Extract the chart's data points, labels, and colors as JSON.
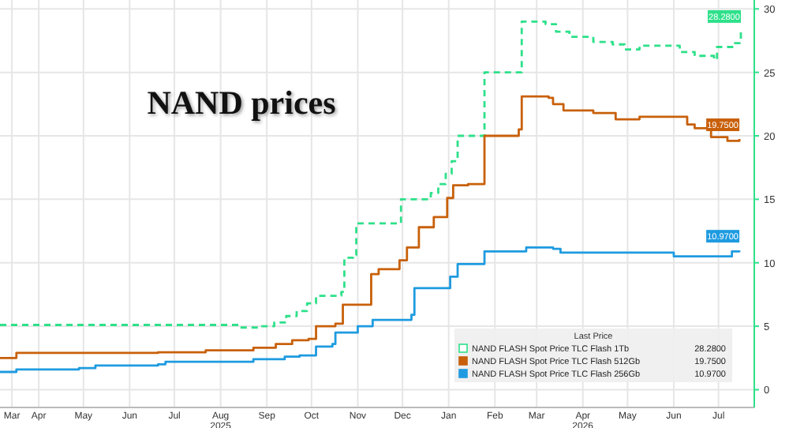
{
  "chart_data": {
    "type": "step",
    "title": "NAND prices",
    "legend_title": "Last Price",
    "legend": "bottom right",
    "grid": true,
    "line_style": "solid",
    "xlim": [
      "2025-03-20",
      "2026-08-08"
    ],
    "xticks": [
      {
        "value": "2025-03-28",
        "label": "Mar"
      },
      {
        "value": "2025-04-15",
        "label": "Apr"
      },
      {
        "value": "2025-05-15",
        "label": "May"
      },
      {
        "value": "2025-06-15",
        "label": "Jun"
      },
      {
        "value": "2025-07-15",
        "label": "Jul"
      },
      {
        "value": "2025-08-15",
        "label": "Aug\n2025"
      },
      {
        "value": "2025-09-15",
        "label": "Sep"
      },
      {
        "value": "2025-10-15",
        "label": "Oct"
      },
      {
        "value": "2025-11-15",
        "label": "Nov"
      },
      {
        "value": "2025-12-15",
        "label": "Dec"
      },
      {
        "value": "2026-01-15",
        "label": "Jan"
      },
      {
        "value": "2026-02-15",
        "label": "Feb"
      },
      {
        "value": "2026-03-15",
        "label": "Mar"
      },
      {
        "value": "2026-04-15",
        "label": "Apr\n2026"
      },
      {
        "value": "2026-05-15",
        "label": "May"
      },
      {
        "value": "2026-06-15",
        "label": "Jun"
      },
      {
        "value": "2026-07-15",
        "label": "Jul"
      }
    ],
    "ylim": [
      -1.4,
      30.7
    ],
    "yticks": [
      0,
      5,
      10,
      15,
      20,
      25,
      30
    ],
    "series": [
      {
        "name": "NAND FLASH Spot Price TLC Flash 1Tb",
        "color": "#2ee08a",
        "line_style": "dashed",
        "x": [
          "2025-03-20",
          "2025-08-25",
          "2025-08-28",
          "2025-09-10",
          "2025-09-20",
          "2025-09-28",
          "2025-10-05",
          "2025-10-12",
          "2025-10-18",
          "2025-11-04",
          "2025-11-06",
          "2025-11-12",
          "2025-11-14",
          "2025-12-14",
          "2026-01-03",
          "2026-01-08",
          "2026-01-13",
          "2026-01-17",
          "2026-01-21",
          "2026-02-08",
          "2026-03-05",
          "2026-03-21",
          "2026-03-28",
          "2026-04-06",
          "2026-04-22",
          "2026-05-05",
          "2026-05-13",
          "2026-05-23",
          "2026-06-08",
          "2026-06-19",
          "2026-06-29",
          "2026-07-12",
          "2026-07-14",
          "2026-07-26",
          "2026-07-30"
        ],
        "values": [
          5.1,
          5.1,
          4.9,
          5.0,
          5.3,
          5.8,
          6.2,
          6.8,
          7.4,
          7.7,
          10.4,
          10.6,
          13.1,
          15.0,
          15.5,
          16.2,
          17.0,
          18.0,
          20.0,
          25.0,
          29.0,
          28.8,
          28.2,
          27.8,
          27.4,
          27.2,
          26.8,
          27.1,
          27.1,
          26.6,
          26.3,
          26.0,
          27.0,
          27.3,
          28.28
        ],
        "value_labels": [
          null,
          null,
          null,
          null,
          null,
          null,
          null,
          null,
          null,
          null,
          null,
          null,
          null,
          null,
          null,
          null,
          null,
          null,
          null,
          null,
          null,
          null,
          null,
          null,
          null,
          null,
          null,
          null,
          null,
          null,
          null,
          null,
          null,
          null,
          "28.2800"
        ]
      },
      {
        "name": "NAND FLASH Spot Price TLC Flash 512Gb",
        "color": "#c8600a",
        "x": [
          "2025-03-20",
          "2025-03-31",
          "2025-07-04",
          "2025-08-05",
          "2025-09-06",
          "2025-09-21",
          "2025-10-02",
          "2025-10-13",
          "2025-10-18",
          "2025-10-31",
          "2025-11-05",
          "2025-11-24",
          "2025-11-29",
          "2025-12-13",
          "2025-12-18",
          "2025-12-26",
          "2026-01-05",
          "2026-01-14",
          "2026-01-18",
          "2026-01-28",
          "2026-02-08",
          "2026-03-03",
          "2026-03-05",
          "2026-03-23",
          "2026-03-26",
          "2026-04-02",
          "2026-04-22",
          "2026-05-07",
          "2026-05-23",
          "2026-06-13",
          "2026-06-24",
          "2026-06-29",
          "2026-07-10",
          "2026-07-21",
          "2026-07-29"
        ],
        "values": [
          2.5,
          2.9,
          2.95,
          3.1,
          3.3,
          3.6,
          3.9,
          4.0,
          5.0,
          5.2,
          6.7,
          9.1,
          9.5,
          10.2,
          11.2,
          12.8,
          13.6,
          15.1,
          16.1,
          16.2,
          20.0,
          20.5,
          23.1,
          23.0,
          22.5,
          22.0,
          21.8,
          21.3,
          21.5,
          21.5,
          20.9,
          20.6,
          19.9,
          19.6,
          19.75
        ],
        "value_labels": [
          null,
          null,
          null,
          null,
          null,
          null,
          null,
          null,
          null,
          null,
          null,
          null,
          null,
          null,
          null,
          null,
          null,
          null,
          null,
          null,
          null,
          null,
          null,
          null,
          null,
          null,
          null,
          null,
          null,
          null,
          null,
          null,
          null,
          null,
          "19.7500"
        ]
      },
      {
        "name": "NAND FLASH Spot Price TLC Flash 256Gb",
        "color": "#1e9be0",
        "x": [
          "2025-03-20",
          "2025-03-31",
          "2025-05-12",
          "2025-05-23",
          "2025-07-04",
          "2025-07-09",
          "2025-09-06",
          "2025-09-27",
          "2025-10-07",
          "2025-10-18",
          "2025-10-29",
          "2025-10-31",
          "2025-11-15",
          "2025-11-25",
          "2025-12-21",
          "2025-12-23",
          "2026-01-16",
          "2026-01-21",
          "2026-02-08",
          "2026-03-08",
          "2026-03-26",
          "2026-03-31",
          "2026-06-15",
          "2026-07-24",
          "2026-07-29"
        ],
        "values": [
          1.4,
          1.6,
          1.7,
          1.9,
          2.0,
          2.2,
          2.4,
          2.6,
          2.7,
          3.4,
          3.6,
          4.5,
          5.0,
          5.5,
          5.9,
          8.0,
          8.9,
          9.9,
          10.9,
          11.2,
          11.1,
          10.8,
          10.5,
          10.9,
          10.97
        ],
        "value_labels": [
          null,
          null,
          null,
          null,
          null,
          null,
          null,
          null,
          null,
          null,
          null,
          null,
          null,
          null,
          null,
          null,
          null,
          null,
          null,
          null,
          null,
          null,
          null,
          null,
          "10.9700"
        ]
      }
    ]
  }
}
